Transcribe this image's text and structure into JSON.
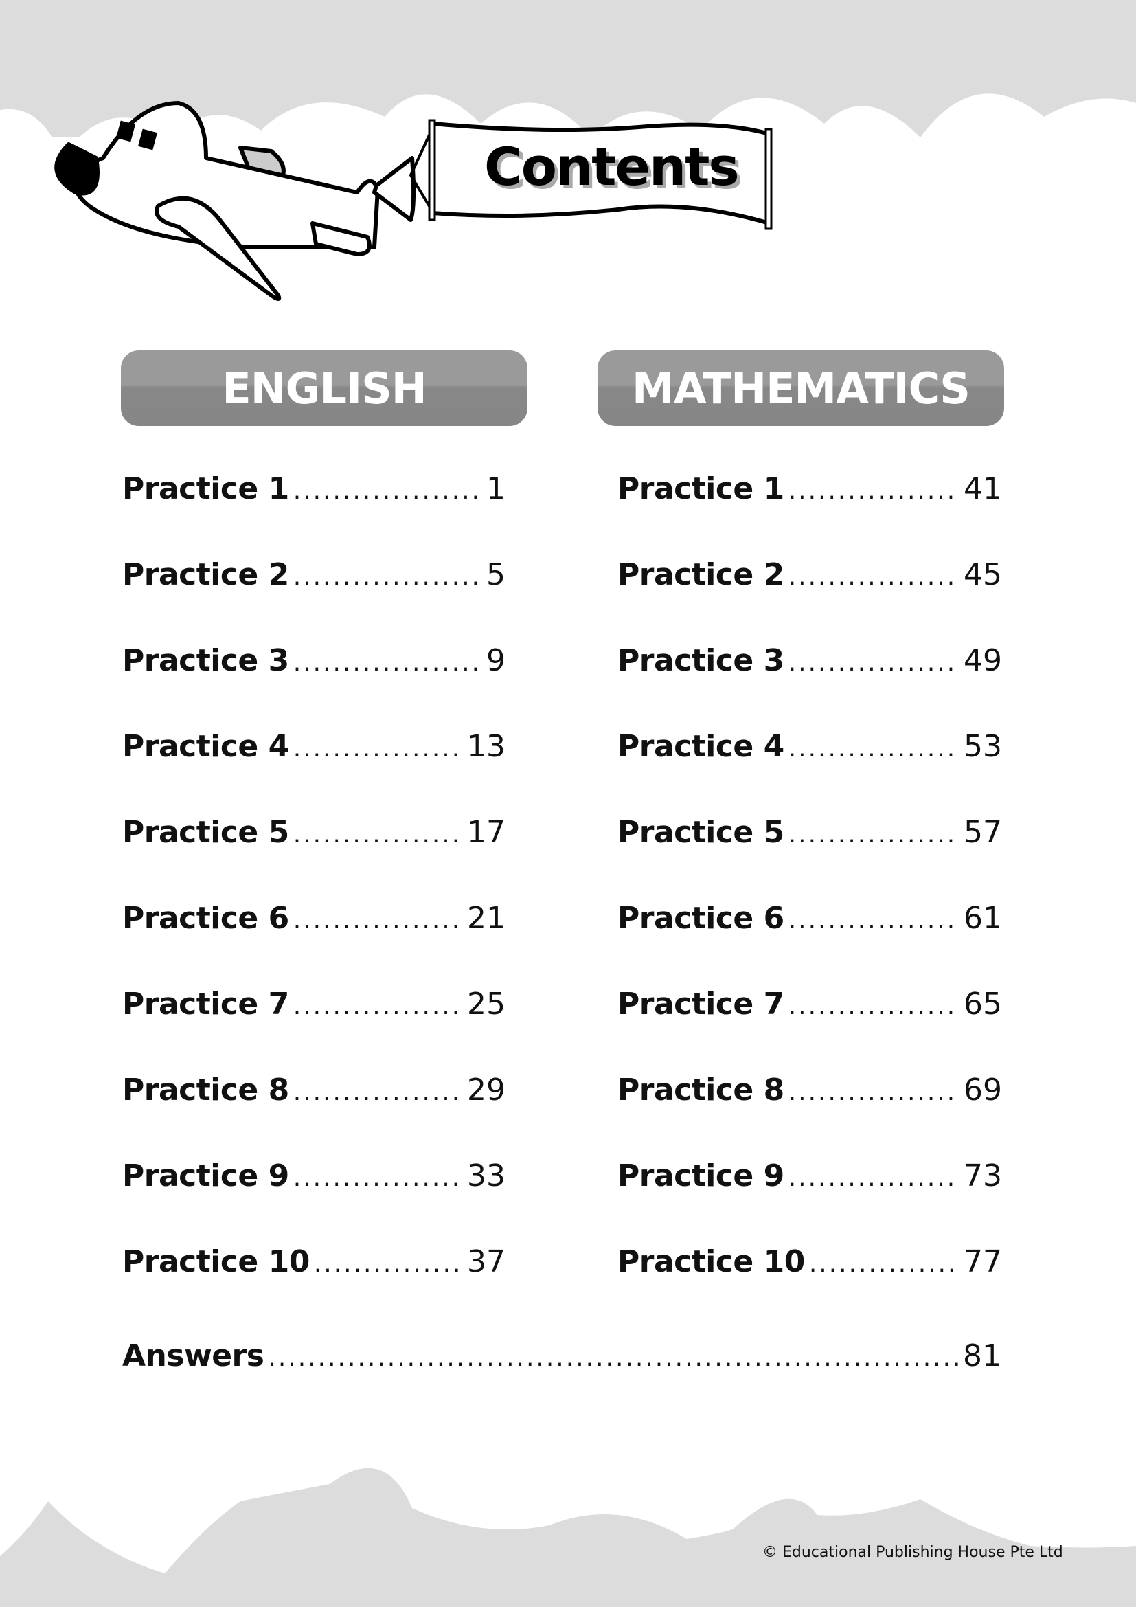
{
  "banner": {
    "title": "Contents"
  },
  "english": {
    "heading": "ENGLISH",
    "items": [
      {
        "label": "Practice 1",
        "page": "1"
      },
      {
        "label": "Practice 2",
        "page": "5"
      },
      {
        "label": "Practice 3",
        "page": "9"
      },
      {
        "label": "Practice 4",
        "page": "13"
      },
      {
        "label": "Practice 5",
        "page": "17"
      },
      {
        "label": "Practice 6",
        "page": "21"
      },
      {
        "label": "Practice 7",
        "page": "25"
      },
      {
        "label": "Practice 8",
        "page": "29"
      },
      {
        "label": "Practice 9",
        "page": "33"
      },
      {
        "label": "Practice 10",
        "page": "37"
      }
    ]
  },
  "mathematics": {
    "heading": "MATHEMATICS",
    "items": [
      {
        "label": "Practice 1",
        "page": "41"
      },
      {
        "label": "Practice 2",
        "page": "45"
      },
      {
        "label": "Practice 3",
        "page": "49"
      },
      {
        "label": "Practice 4",
        "page": "53"
      },
      {
        "label": "Practice 5",
        "page": "57"
      },
      {
        "label": "Practice 6",
        "page": "61"
      },
      {
        "label": "Practice 7",
        "page": "65"
      },
      {
        "label": "Practice 8",
        "page": "69"
      },
      {
        "label": "Practice 9",
        "page": "73"
      },
      {
        "label": "Practice 10",
        "page": "77"
      }
    ]
  },
  "answers": {
    "label": "Answers",
    "page": "81"
  },
  "footer": {
    "copyright": "© Educational Publishing House Pte Ltd"
  },
  "colors": {
    "cloud_gray": "#dcdcdc",
    "header_gray": "#909090"
  }
}
